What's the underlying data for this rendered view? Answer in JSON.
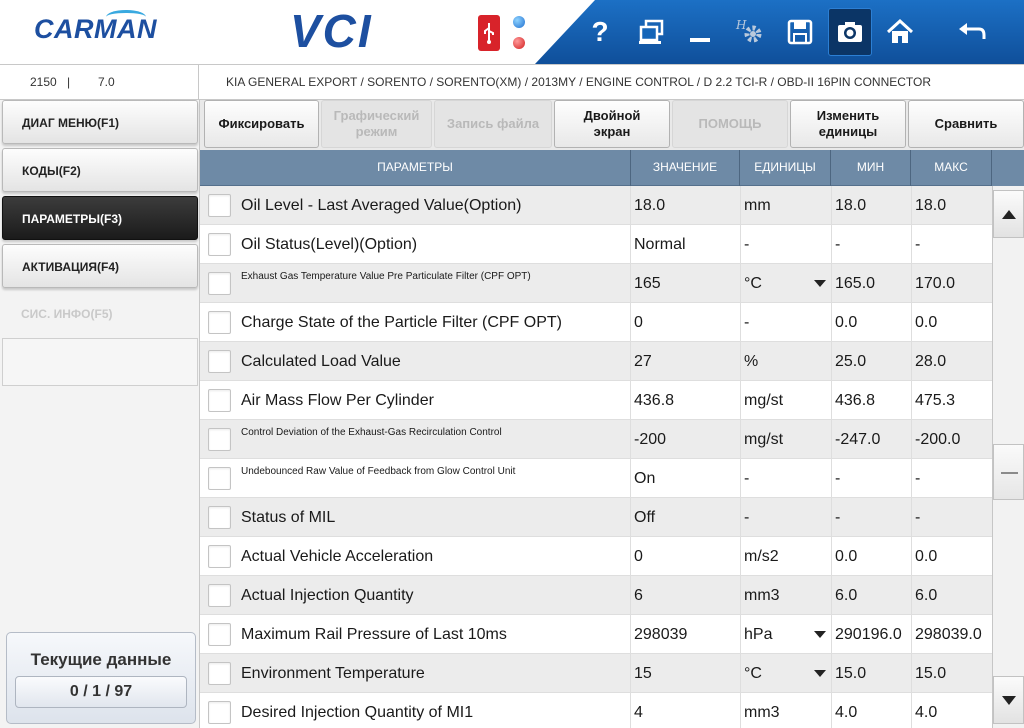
{
  "header": {
    "brand": "CARMAN",
    "product": "VCI",
    "icons": [
      "usb-icon",
      "status-led-blue-icon",
      "status-led-red-icon",
      "help-icon",
      "window-switch-icon",
      "minimize-icon",
      "settings-icon",
      "save-icon",
      "camera-icon",
      "home-icon",
      "back-icon"
    ],
    "help_label": "?"
  },
  "infobar": {
    "version_left": "2150",
    "version_separator": "|",
    "version_right": "7.0",
    "breadcrumb": "KIA GENERAL EXPORT / SORENTO / SORENTO(XM) / 2013MY / ENGINE CONTROL / D 2.2 TCI-R / OBD-II 16PIN CONNECTOR"
  },
  "sidebar": {
    "items": [
      {
        "label": "ДИАГ МЕНЮ(F1)",
        "state": "normal"
      },
      {
        "label": "КОДЫ(F2)",
        "state": "normal"
      },
      {
        "label": "ПАРАМЕТРЫ(F3)",
        "state": "active"
      },
      {
        "label": "АКТИВАЦИЯ(F4)",
        "state": "normal"
      },
      {
        "label": "СИС. ИНФО(F5)",
        "state": "disabled"
      }
    ],
    "status": {
      "title": "Текущие данные",
      "counter": "0 / 1 / 97"
    }
  },
  "toolbar": {
    "buttons": [
      {
        "label": "Фиксировать",
        "enabled": true
      },
      {
        "label": "Графический\nрежим",
        "enabled": false
      },
      {
        "label": "Запись файла",
        "enabled": false
      },
      {
        "label": "Двойной\nэкран",
        "enabled": true
      },
      {
        "label": "ПОМОЩЬ",
        "enabled": false
      },
      {
        "label": "Изменить\nединицы",
        "enabled": true
      },
      {
        "label": "Сравнить",
        "enabled": true
      }
    ]
  },
  "table": {
    "headers": {
      "param": "ПАРАМЕТРЫ",
      "value": "ЗНАЧЕНИЕ",
      "units": "ЕДИНИЦЫ",
      "min": "МИН",
      "max": "МАКС"
    },
    "rows": [
      {
        "name": "Oil Level - Last Averaged Value(Option)",
        "value": "18.0",
        "unit": "mm",
        "min": "18.0",
        "max": "18.0",
        "small": false,
        "dropdown": false
      },
      {
        "name": "Oil Status(Level)(Option)",
        "value": "Normal",
        "unit": "-",
        "min": "-",
        "max": "-",
        "small": false,
        "dropdown": false
      },
      {
        "name": "Exhaust Gas Temperature Value Pre Particulate Filter (CPF OPT)",
        "value": "165",
        "unit": "°C",
        "min": "165.0",
        "max": "170.0",
        "small": true,
        "dropdown": true
      },
      {
        "name": "Charge State of the Particle Filter (CPF OPT)",
        "value": "0",
        "unit": "-",
        "min": "0.0",
        "max": "0.0",
        "small": false,
        "dropdown": false
      },
      {
        "name": "Calculated Load Value",
        "value": "27",
        "unit": "%",
        "min": "25.0",
        "max": "28.0",
        "small": false,
        "dropdown": false
      },
      {
        "name": "Air Mass Flow Per Cylinder",
        "value": "436.8",
        "unit": "mg/st",
        "min": "436.8",
        "max": "475.3",
        "small": false,
        "dropdown": false
      },
      {
        "name": "Control Deviation of the Exhaust-Gas Recirculation Control",
        "value": "-200",
        "unit": "mg/st",
        "min": "-247.0",
        "max": "-200.0",
        "small": true,
        "dropdown": false
      },
      {
        "name": "Undebounced Raw Value of Feedback from Glow Control Unit",
        "value": "On",
        "unit": "-",
        "min": "-",
        "max": "-",
        "small": true,
        "dropdown": false
      },
      {
        "name": "Status of MIL",
        "value": "Off",
        "unit": "-",
        "min": "-",
        "max": "-",
        "small": false,
        "dropdown": false
      },
      {
        "name": "Actual Vehicle Acceleration",
        "value": "0",
        "unit": "m/s2",
        "min": "0.0",
        "max": "0.0",
        "small": false,
        "dropdown": false
      },
      {
        "name": "Actual Injection Quantity",
        "value": "6",
        "unit": "mm3",
        "min": "6.0",
        "max": "6.0",
        "small": false,
        "dropdown": false
      },
      {
        "name": "Maximum Rail Pressure of Last 10ms",
        "value": "298039",
        "unit": "hPa",
        "min": "290196.0",
        "max": "298039.0",
        "small": false,
        "dropdown": true
      },
      {
        "name": "Environment Temperature",
        "value": "15",
        "unit": "°C",
        "min": "15.0",
        "max": "15.0",
        "small": false,
        "dropdown": true
      },
      {
        "name": "Desired Injection Quantity of MI1",
        "value": "4",
        "unit": "mm3",
        "min": "4.0",
        "max": "4.0",
        "small": false,
        "dropdown": false
      }
    ]
  },
  "colors": {
    "brand_blue": "#1d4fa0",
    "toolbar_blue": "#1565b8",
    "table_header": "#6e8aa6",
    "usb_red": "#d8232a",
    "active_sidebar": "#2a2a2a"
  }
}
